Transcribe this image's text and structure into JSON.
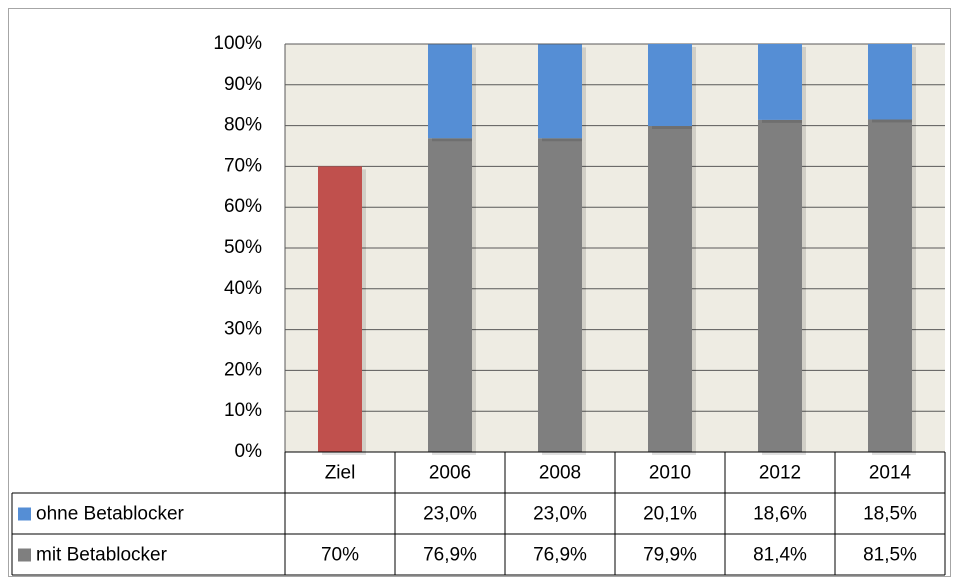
{
  "chart_data": {
    "type": "stacked_bar",
    "categories": [
      "Ziel",
      "2006",
      "2008",
      "2010",
      "2012",
      "2014"
    ],
    "series": [
      {
        "name": "ohne Betablocker",
        "color": "#558ed5",
        "values": [
          null,
          23.0,
          23.0,
          20.1,
          18.6,
          18.5
        ],
        "value_labels": [
          null,
          "23,0%",
          "23,0%",
          "20,1%",
          "18,6%",
          "18,5%"
        ]
      },
      {
        "name": "mit Betablocker",
        "color": "#7f7f7f",
        "point_colors": [
          "#c0504d",
          "#7f7f7f",
          "#7f7f7f",
          "#7f7f7f",
          "#7f7f7f",
          "#7f7f7f"
        ],
        "values": [
          70,
          76.9,
          76.9,
          79.9,
          81.4,
          81.5
        ],
        "value_labels": [
          "70%",
          "76,9%",
          "76,9%",
          "79,9%",
          "81,4%",
          "81,5%"
        ]
      }
    ],
    "ylim": [
      0,
      100
    ],
    "yticks": [
      {
        "value": 0,
        "label": "0%"
      },
      {
        "value": 10,
        "label": "10%"
      },
      {
        "value": 20,
        "label": "20%"
      },
      {
        "value": 30,
        "label": "30%"
      },
      {
        "value": 40,
        "label": "40%"
      },
      {
        "value": 50,
        "label": "50%"
      },
      {
        "value": 60,
        "label": "60%"
      },
      {
        "value": 70,
        "label": "70%"
      },
      {
        "value": 80,
        "label": "80%"
      },
      {
        "value": 90,
        "label": "90%"
      },
      {
        "value": 100,
        "label": "100%"
      }
    ],
    "grid": true,
    "data_table": true
  }
}
